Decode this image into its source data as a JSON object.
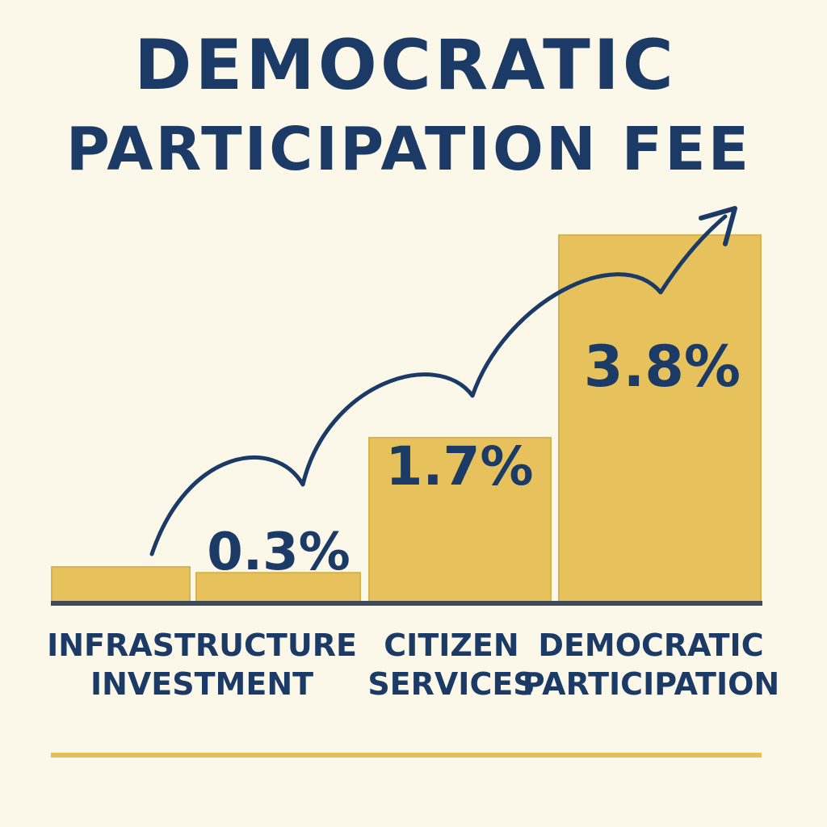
{
  "colors": {
    "background": "#fbf8ea",
    "bar": "#e6c15c",
    "bar_border": "#d9b24e",
    "ink": "#1b3a66",
    "baseline": "#3e4a5a",
    "rule": "#e2c15a"
  },
  "chart_data": {
    "type": "bar",
    "title": "DEMOCRATIC PARTICIPATION FEE",
    "title_lines": [
      "DEMOCRATIC",
      "PARTICIPATION FEE"
    ],
    "categories": [
      "INFRASTRUCTURE INVESTMENT",
      "CITIZEN SERVICES",
      "DEMOCRATIC PARTICIPATION"
    ],
    "category_label_lines": [
      [
        "INFRASTRUCTURE",
        "INVESTMENT"
      ],
      [
        "CITIZEN",
        "SERVICES"
      ],
      [
        "DEMOCRATIC",
        "PARTICIPATION"
      ]
    ],
    "values": [
      0.3,
      1.7,
      3.8
    ],
    "data_labels": [
      "0.3%",
      "1.7%",
      "3.8%"
    ],
    "ylim": [
      0,
      5.4
    ],
    "grid": false,
    "legend": "none",
    "annotation": "upward trend arrow"
  }
}
